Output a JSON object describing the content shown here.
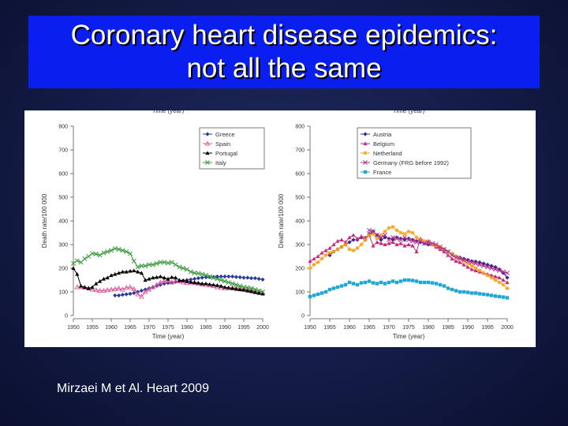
{
  "slide": {
    "title_line1": "Coronary heart disease epidemics:",
    "title_line2": "not all the same",
    "citation": "Mirzaei M et Al. Heart 2009"
  },
  "chart_data": [
    {
      "type": "line",
      "top_label": "Time (year)",
      "xlabel": "Time (year)",
      "ylabel": "Death rate/100 000",
      "xlim": [
        1950,
        2000
      ],
      "ylim": [
        0,
        800
      ],
      "xticks": [
        1950,
        1955,
        1960,
        1965,
        1970,
        1975,
        1980,
        1985,
        1990,
        1995,
        2000
      ],
      "yticks": [
        0,
        100,
        200,
        300,
        400,
        500,
        600,
        700,
        800
      ],
      "legend_position": "top-right",
      "series": [
        {
          "name": "Greece",
          "color": "#2b3a9a",
          "marker": "diamond",
          "x": [
            1961,
            1962,
            1963,
            1964,
            1965,
            1966,
            1967,
            1968,
            1969,
            1970,
            1971,
            1972,
            1973,
            1974,
            1975,
            1976,
            1977,
            1978,
            1979,
            1980,
            1981,
            1982,
            1983,
            1984,
            1985,
            1986,
            1987,
            1988,
            1989,
            1990,
            1991,
            1992,
            1993,
            1994,
            1995,
            1996,
            1997,
            1998,
            1999,
            2000
          ],
          "y": [
            85,
            85,
            88,
            90,
            92,
            95,
            100,
            105,
            110,
            115,
            120,
            125,
            130,
            135,
            138,
            140,
            142,
            145,
            148,
            150,
            152,
            155,
            158,
            160,
            162,
            162,
            163,
            165,
            165,
            165,
            165,
            165,
            163,
            162,
            160,
            160,
            158,
            158,
            155,
            152
          ]
        },
        {
          "name": "Spain",
          "color": "#e0559a",
          "marker": "triangle-open",
          "x": [
            1951,
            1952,
            1953,
            1954,
            1955,
            1956,
            1957,
            1958,
            1959,
            1960,
            1961,
            1962,
            1963,
            1964,
            1965,
            1966,
            1967,
            1968,
            1969,
            1970,
            1971,
            1972,
            1973,
            1974,
            1975,
            1976,
            1977,
            1978,
            1979,
            1980,
            1981,
            1982,
            1983,
            1984,
            1985,
            1986,
            1987,
            1988,
            1989,
            1990,
            1991,
            1992,
            1993,
            1994,
            1995,
            1996,
            1997,
            1998,
            1999,
            2000
          ],
          "y": [
            120,
            122,
            118,
            115,
            110,
            108,
            105,
            105,
            108,
            110,
            112,
            115,
            110,
            118,
            120,
            112,
            90,
            80,
            100,
            110,
            120,
            130,
            140,
            145,
            148,
            140,
            145,
            145,
            140,
            138,
            140,
            138,
            135,
            132,
            130,
            128,
            125,
            120,
            118,
            115,
            115,
            118,
            115,
            112,
            110,
            108,
            105,
            100,
            98,
            95
          ]
        },
        {
          "name": "Portugal",
          "color": "#000000",
          "marker": "triangle",
          "x": [
            1950,
            1951,
            1952,
            1953,
            1954,
            1955,
            1956,
            1957,
            1958,
            1959,
            1960,
            1961,
            1962,
            1963,
            1964,
            1965,
            1966,
            1967,
            1968,
            1969,
            1970,
            1971,
            1972,
            1973,
            1974,
            1975,
            1976,
            1977,
            1978,
            1979,
            1980,
            1981,
            1982,
            1983,
            1984,
            1985,
            1986,
            1987,
            1988,
            1989,
            1990,
            1991,
            1992,
            1993,
            1994,
            1995,
            1996,
            1997,
            1998,
            1999,
            2000
          ],
          "y": [
            200,
            175,
            125,
            120,
            115,
            120,
            135,
            145,
            155,
            160,
            170,
            175,
            180,
            185,
            185,
            188,
            190,
            185,
            180,
            150,
            155,
            160,
            162,
            165,
            160,
            155,
            162,
            160,
            150,
            148,
            145,
            142,
            140,
            138,
            135,
            135,
            132,
            130,
            128,
            125,
            120,
            118,
            115,
            112,
            110,
            108,
            105,
            102,
            98,
            95,
            92
          ]
        },
        {
          "name": "Italy",
          "color": "#3a9a3a",
          "marker": "x",
          "x": [
            1950,
            1951,
            1952,
            1953,
            1954,
            1955,
            1956,
            1957,
            1958,
            1959,
            1960,
            1961,
            1962,
            1963,
            1964,
            1965,
            1966,
            1967,
            1968,
            1969,
            1970,
            1971,
            1972,
            1973,
            1974,
            1975,
            1976,
            1977,
            1978,
            1979,
            1980,
            1981,
            1982,
            1983,
            1984,
            1985,
            1986,
            1987,
            1988,
            1989,
            1990,
            1991,
            1992,
            1993,
            1994,
            1995,
            1996,
            1997,
            1998,
            1999,
            2000
          ],
          "y": [
            220,
            232,
            225,
            240,
            250,
            262,
            260,
            255,
            265,
            270,
            275,
            283,
            280,
            275,
            270,
            262,
            230,
            205,
            210,
            210,
            215,
            215,
            220,
            225,
            225,
            222,
            225,
            215,
            205,
            200,
            195,
            185,
            180,
            178,
            175,
            170,
            165,
            160,
            155,
            150,
            145,
            140,
            135,
            130,
            125,
            120,
            118,
            115,
            110,
            105,
            100
          ]
        }
      ]
    },
    {
      "type": "line",
      "top_label": "Time (year)",
      "xlabel": "Time (year)",
      "ylabel": "Death rate/100 000",
      "xlim": [
        1950,
        2000
      ],
      "ylim": [
        0,
        800
      ],
      "xticks": [
        1950,
        1955,
        1960,
        1965,
        1970,
        1975,
        1980,
        1985,
        1990,
        1995,
        2000
      ],
      "yticks": [
        0,
        100,
        200,
        300,
        400,
        500,
        600,
        700,
        800
      ],
      "legend_position": "top-right",
      "series": [
        {
          "name": "Austria",
          "color": "#3b2a8a",
          "marker": "diamond",
          "x": [
            1955,
            1956,
            1957,
            1958,
            1959,
            1960,
            1961,
            1962,
            1963,
            1964,
            1965,
            1966,
            1967,
            1968,
            1969,
            1970,
            1971,
            1972,
            1973,
            1974,
            1975,
            1976,
            1977,
            1978,
            1979,
            1980,
            1981,
            1982,
            1983,
            1984,
            1985,
            1986,
            1987,
            1988,
            1989,
            1990,
            1991,
            1992,
            1993,
            1994,
            1995,
            1996,
            1997,
            1998,
            1999,
            2000
          ],
          "y": [
            255,
            270,
            280,
            290,
            300,
            310,
            320,
            320,
            330,
            320,
            345,
            355,
            340,
            320,
            330,
            325,
            320,
            330,
            325,
            320,
            325,
            320,
            315,
            310,
            305,
            300,
            300,
            290,
            285,
            280,
            270,
            260,
            250,
            245,
            240,
            235,
            230,
            228,
            225,
            220,
            215,
            210,
            205,
            195,
            180,
            160
          ]
        },
        {
          "name": "Belgium",
          "color": "#c8287a",
          "marker": "triangle",
          "x": [
            1950,
            1951,
            1952,
            1953,
            1954,
            1955,
            1956,
            1957,
            1958,
            1959,
            1960,
            1961,
            1962,
            1963,
            1964,
            1965,
            1966,
            1967,
            1968,
            1969,
            1970,
            1971,
            1972,
            1973,
            1974,
            1975,
            1976,
            1977,
            1978,
            1979,
            1980,
            1981,
            1982,
            1983,
            1984,
            1985,
            1986,
            1987,
            1988,
            1989,
            1990,
            1991,
            1992,
            1993,
            1994,
            1995,
            1996,
            1997,
            1998,
            1999,
            2000
          ],
          "y": [
            230,
            240,
            250,
            265,
            275,
            285,
            300,
            315,
            320,
            310,
            330,
            340,
            325,
            335,
            330,
            340,
            295,
            310,
            305,
            300,
            305,
            310,
            300,
            305,
            295,
            300,
            295,
            270,
            325,
            310,
            315,
            300,
            290,
            280,
            270,
            255,
            240,
            230,
            225,
            215,
            205,
            195,
            190,
            185,
            180,
            175,
            170,
            165,
            160,
            150,
            140
          ]
        },
        {
          "name": "Netherland",
          "color": "#f5a21a",
          "marker": "star",
          "x": [
            1950,
            1951,
            1952,
            1953,
            1954,
            1955,
            1956,
            1957,
            1958,
            1959,
            1960,
            1961,
            1962,
            1963,
            1964,
            1965,
            1966,
            1967,
            1968,
            1969,
            1970,
            1971,
            1972,
            1973,
            1974,
            1975,
            1976,
            1977,
            1978,
            1979,
            1980,
            1981,
            1982,
            1983,
            1984,
            1985,
            1986,
            1987,
            1988,
            1989,
            1990,
            1991,
            1992,
            1993,
            1994,
            1995,
            1996,
            1997,
            1998,
            1999,
            2000
          ],
          "y": [
            200,
            215,
            225,
            240,
            255,
            265,
            270,
            280,
            290,
            300,
            280,
            275,
            285,
            300,
            320,
            340,
            345,
            325,
            340,
            355,
            370,
            375,
            360,
            350,
            345,
            355,
            350,
            330,
            320,
            315,
            310,
            300,
            295,
            290,
            280,
            270,
            260,
            250,
            240,
            230,
            220,
            210,
            200,
            190,
            180,
            170,
            160,
            150,
            140,
            130,
            115
          ]
        },
        {
          "name": "Germany (FRG before 1992)",
          "color": "#b2338f",
          "marker": "x",
          "x": [
            1965,
            1966,
            1967,
            1968,
            1969,
            1970,
            1971,
            1972,
            1973,
            1974,
            1975,
            1976,
            1977,
            1978,
            1979,
            1980,
            1981,
            1982,
            1983,
            1984,
            1985,
            1986,
            1987,
            1988,
            1989,
            1990,
            1991,
            1992,
            1993,
            1994,
            1995,
            1996,
            1997,
            1998,
            1999,
            2000
          ],
          "y": [
            360,
            355,
            340,
            330,
            340,
            320,
            330,
            325,
            320,
            330,
            320,
            315,
            310,
            315,
            305,
            310,
            305,
            300,
            290,
            280,
            270,
            255,
            245,
            240,
            235,
            230,
            225,
            220,
            215,
            210,
            205,
            200,
            195,
            190,
            185,
            180
          ]
        },
        {
          "name": "France",
          "color": "#1fa7d6",
          "marker": "square",
          "x": [
            1950,
            1951,
            1952,
            1953,
            1954,
            1955,
            1956,
            1957,
            1958,
            1959,
            1960,
            1961,
            1962,
            1963,
            1964,
            1965,
            1966,
            1967,
            1968,
            1969,
            1970,
            1971,
            1972,
            1973,
            1974,
            1975,
            1976,
            1977,
            1978,
            1979,
            1980,
            1981,
            1982,
            1983,
            1984,
            1985,
            1986,
            1987,
            1988,
            1989,
            1990,
            1991,
            1992,
            1993,
            1994,
            1995,
            1996,
            1997,
            1998,
            1999,
            2000
          ],
          "y": [
            80,
            85,
            90,
            95,
            100,
            110,
            115,
            120,
            125,
            130,
            140,
            135,
            130,
            138,
            140,
            145,
            138,
            135,
            140,
            135,
            140,
            145,
            140,
            145,
            150,
            150,
            148,
            145,
            140,
            140,
            140,
            138,
            135,
            130,
            125,
            115,
            110,
            105,
            100,
            100,
            98,
            95,
            95,
            92,
            90,
            88,
            85,
            82,
            80,
            78,
            75
          ]
        }
      ]
    }
  ]
}
